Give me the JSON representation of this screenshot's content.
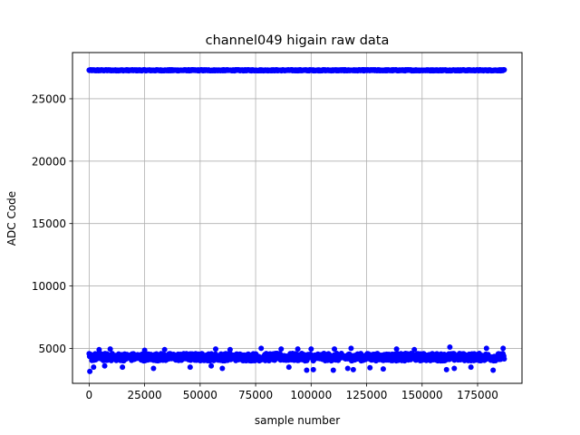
{
  "chart_data": {
    "type": "scatter",
    "title": "channel049 higain raw data",
    "xlabel": "sample number",
    "ylabel": "ADC Code",
    "xlim": [
      -7500,
      195000
    ],
    "ylim": [
      2200,
      28700
    ],
    "x_ticks": [
      0,
      25000,
      50000,
      75000,
      100000,
      125000,
      150000,
      175000
    ],
    "x_tick_labels": [
      "0",
      "25000",
      "50000",
      "75000",
      "100000",
      "125000",
      "150000",
      "175000"
    ],
    "y_ticks": [
      5000,
      10000,
      15000,
      20000,
      25000
    ],
    "y_tick_labels": [
      "5000",
      "10000",
      "15000",
      "20000",
      "25000"
    ],
    "grid": true,
    "legend": "none",
    "marker_color": "#0000ff",
    "series": [
      {
        "bands": [
          {
            "x_range": [
              0,
              187000
            ],
            "y_center": 27280,
            "y_spread": 40
          },
          {
            "x_range": [
              0,
              187000
            ],
            "y_center": 4300,
            "y_spread": 300
          }
        ],
        "outliers": [
          [
            300,
            3150
          ],
          [
            2000,
            3500
          ],
          [
            4500,
            4900
          ],
          [
            7000,
            3600
          ],
          [
            9500,
            4950
          ],
          [
            15000,
            3500
          ],
          [
            25000,
            4850
          ],
          [
            29000,
            3400
          ],
          [
            34000,
            4900
          ],
          [
            45500,
            3500
          ],
          [
            55000,
            3600
          ],
          [
            57000,
            4950
          ],
          [
            60000,
            3400
          ],
          [
            63500,
            4900
          ],
          [
            77500,
            5000
          ],
          [
            86500,
            4950
          ],
          [
            90000,
            3500
          ],
          [
            94000,
            4950
          ],
          [
            98000,
            3250
          ],
          [
            100000,
            4950
          ],
          [
            101000,
            3300
          ],
          [
            110000,
            3250
          ],
          [
            110500,
            4950
          ],
          [
            116500,
            3400
          ],
          [
            118000,
            5000
          ],
          [
            119000,
            3300
          ],
          [
            126500,
            3450
          ],
          [
            132500,
            3350
          ],
          [
            138500,
            4950
          ],
          [
            146500,
            4900
          ],
          [
            161000,
            3300
          ],
          [
            162500,
            5100
          ],
          [
            164500,
            3400
          ],
          [
            172000,
            3500
          ],
          [
            179000,
            5000
          ],
          [
            182000,
            3250
          ],
          [
            186500,
            5000
          ]
        ]
      }
    ]
  }
}
